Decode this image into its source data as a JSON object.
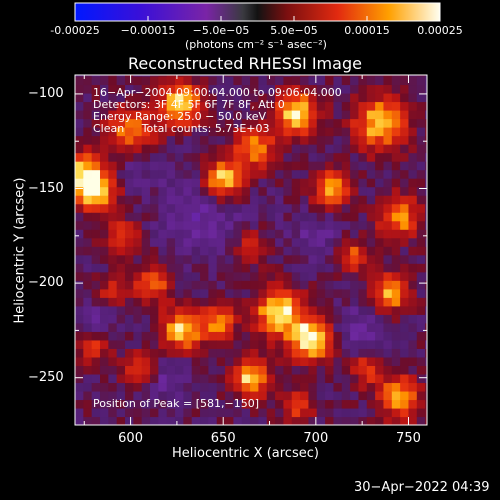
{
  "chart_data": {
    "type": "heatmap",
    "title": "Reconstructed RHESSI Image",
    "xlabel": "Heliocentric X (arcsec)",
    "ylabel": "Heliocentric Y (arcsec)",
    "xlim": [
      570,
      760
    ],
    "ylim": [
      -275,
      -90
    ],
    "xticks": [
      {
        "value": 600,
        "label": "600"
      },
      {
        "value": 650,
        "label": "650"
      },
      {
        "value": 700,
        "label": "700"
      },
      {
        "value": 750,
        "label": "750"
      }
    ],
    "yticks": [
      {
        "value": -100,
        "label": "−100"
      },
      {
        "value": -150,
        "label": "−150"
      },
      {
        "value": -200,
        "label": "−200"
      },
      {
        "value": -250,
        "label": "−250"
      }
    ],
    "colorbar": {
      "range": [
        -0.00025,
        0.00025
      ],
      "ticks": [
        {
          "value": -0.00025,
          "label": "-0.00025"
        },
        {
          "value": -0.00015,
          "label": "−0.00015"
        },
        {
          "value": -5e-05,
          "label": "−5.0e−05"
        },
        {
          "value": 5e-05,
          "label": "5.0e−05"
        },
        {
          "value": 0.00015,
          "label": "0.00015"
        },
        {
          "value": 0.00025,
          "label": "0.00025"
        }
      ],
      "units": "(photons cm⁻² s⁻¹ asec⁻²)"
    },
    "annotations": {
      "time": "16−Apr−2004 09:00:04.000 to 09:06:04.000",
      "detectors": "Detectors: 3F 4F 5F 6F 7F 8F, Att 0",
      "energy": "Energy Range: 25.0 − 50.0 keV",
      "method": "Clean     Total counts: 5.73E+03",
      "peak": "Position of Peak = [581,−150]"
    },
    "peak": {
      "x": 581,
      "y": -150
    },
    "hotspots": [
      {
        "x": 581,
        "y": -150,
        "amp": 1.0,
        "r": 8
      },
      {
        "x": 574,
        "y": -140,
        "amp": 0.6,
        "r": 7
      },
      {
        "x": 600,
        "y": -120,
        "amp": 0.65,
        "r": 9
      },
      {
        "x": 627,
        "y": -105,
        "amp": 0.9,
        "r": 8
      },
      {
        "x": 650,
        "y": -145,
        "amp": 1.0,
        "r": 8
      },
      {
        "x": 667,
        "y": -128,
        "amp": 0.7,
        "r": 8
      },
      {
        "x": 690,
        "y": -110,
        "amp": 0.95,
        "r": 8
      },
      {
        "x": 735,
        "y": -115,
        "amp": 0.85,
        "r": 10
      },
      {
        "x": 708,
        "y": -150,
        "amp": 0.75,
        "r": 7
      },
      {
        "x": 745,
        "y": -165,
        "amp": 0.7,
        "r": 8
      },
      {
        "x": 595,
        "y": -175,
        "amp": 0.45,
        "r": 7
      },
      {
        "x": 612,
        "y": -200,
        "amp": 0.6,
        "r": 7
      },
      {
        "x": 628,
        "y": -225,
        "amp": 0.85,
        "r": 8
      },
      {
        "x": 648,
        "y": -220,
        "amp": 0.7,
        "r": 6
      },
      {
        "x": 680,
        "y": -215,
        "amp": 0.95,
        "r": 9
      },
      {
        "x": 697,
        "y": -230,
        "amp": 1.0,
        "r": 8
      },
      {
        "x": 665,
        "y": -250,
        "amp": 0.85,
        "r": 7
      },
      {
        "x": 605,
        "y": -245,
        "amp": 0.6,
        "r": 6
      },
      {
        "x": 740,
        "y": -205,
        "amp": 0.8,
        "r": 7
      },
      {
        "x": 720,
        "y": -185,
        "amp": 0.55,
        "r": 6
      },
      {
        "x": 745,
        "y": -260,
        "amp": 0.75,
        "r": 8
      },
      {
        "x": 728,
        "y": -245,
        "amp": 0.55,
        "r": 6
      },
      {
        "x": 665,
        "y": -180,
        "amp": 0.5,
        "r": 6
      },
      {
        "x": 590,
        "y": -205,
        "amp": 0.5,
        "r": 6
      },
      {
        "x": 580,
        "y": -235,
        "amp": 0.45,
        "r": 6
      },
      {
        "x": 690,
        "y": -265,
        "amp": 0.55,
        "r": 6
      }
    ],
    "coldspots": [
      {
        "x": 640,
        "y": -160,
        "amp": 0.35,
        "r": 16
      },
      {
        "x": 620,
        "y": -250,
        "amp": 0.3,
        "r": 9
      },
      {
        "x": 585,
        "y": -215,
        "amp": 0.25,
        "r": 8
      },
      {
        "x": 725,
        "y": -225,
        "amp": 0.3,
        "r": 10
      },
      {
        "x": 700,
        "y": -175,
        "amp": 0.25,
        "r": 10
      },
      {
        "x": 600,
        "y": -140,
        "amp": 0.2,
        "r": 8
      }
    ]
  },
  "footer": {
    "timestamp": "30−Apr−2022 04:39"
  }
}
